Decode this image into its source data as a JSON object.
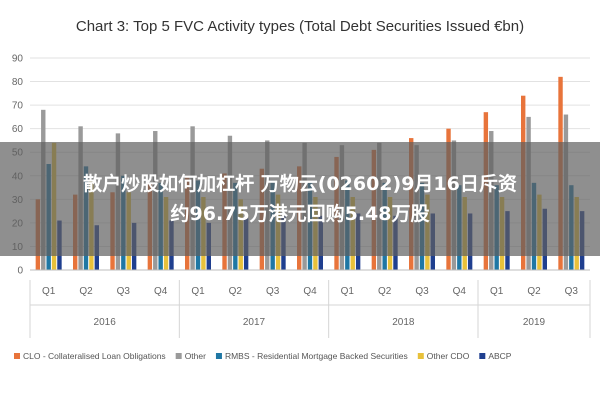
{
  "chart_data": {
    "type": "bar",
    "title": "Chart 3: Top 5 FVC Activity types (Total Debt Securities Issued €bn)",
    "ylim": [
      0,
      90
    ],
    "yticks": [
      0,
      10,
      20,
      30,
      40,
      50,
      60,
      70,
      80,
      90
    ],
    "grid": true,
    "legend_position": "bottom",
    "categories": [
      "Q1",
      "Q2",
      "Q3",
      "Q4",
      "Q1",
      "Q2",
      "Q3",
      "Q4",
      "Q1",
      "Q2",
      "Q3",
      "Q4",
      "Q1",
      "Q2",
      "Q3"
    ],
    "year_groups": [
      {
        "label": "2016",
        "count": 4
      },
      {
        "label": "2017",
        "count": 4
      },
      {
        "label": "2018",
        "count": 4
      },
      {
        "label": "2019",
        "count": 3
      }
    ],
    "series": [
      {
        "name": "CLO - Collateralised Loan Obligations",
        "color": "#e8743b",
        "values": [
          30,
          32,
          33,
          37,
          40,
          41,
          43,
          44,
          48,
          51,
          56,
          60,
          67,
          74,
          82
        ]
      },
      {
        "name": "Other",
        "color": "#9a9a9a",
        "values": [
          68,
          61,
          58,
          59,
          61,
          57,
          55,
          54,
          53,
          54,
          53,
          55,
          59,
          65,
          66
        ]
      },
      {
        "name": "RMBS - Residential Mortgage Backed Securities",
        "color": "#1f77a4",
        "values": [
          45,
          44,
          40,
          37,
          38,
          37,
          38,
          37,
          38,
          37,
          37,
          36,
          36,
          37,
          36
        ]
      },
      {
        "name": "Other CDO",
        "color": "#e8c13b",
        "values": [
          54,
          38,
          33,
          31,
          31,
          30,
          32,
          31,
          31,
          31,
          32,
          31,
          31,
          32,
          31
        ]
      },
      {
        "name": "ABCP",
        "color": "#1f3f8f",
        "values": [
          21,
          19,
          20,
          21,
          20,
          22,
          23,
          23,
          24,
          23,
          24,
          24,
          25,
          26,
          25
        ]
      }
    ]
  },
  "overlay": {
    "line1": "散户炒股如何加杠杆 万物云(02602)9月16日斥资",
    "line2": "约96.75万港元回购5.48万股"
  }
}
